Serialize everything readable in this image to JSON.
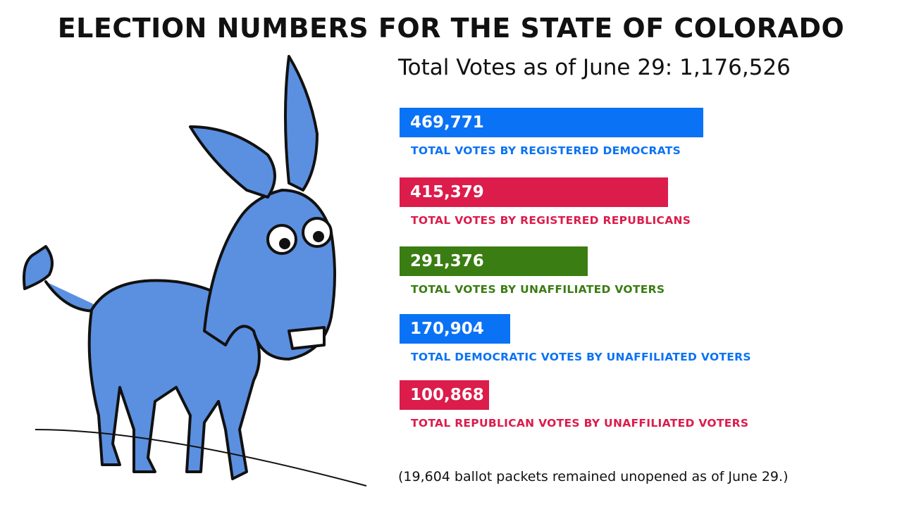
{
  "chart_data": {
    "type": "bar",
    "orientation": "horizontal",
    "title": "ELECTION NUMBERS FOR THE STATE OF COLORADO",
    "subtitle": "Total Votes as of June 29: 1,176,526",
    "categories": [
      "TOTAL VOTES BY REGISTERED DEMOCRATS",
      "TOTAL VOTES BY REGISTERED REPUBLICANS",
      "TOTAL VOTES BY UNAFFILIATED VOTERS",
      "TOTAL DEMOCRATIC VOTES BY UNAFFILIATED VOTERS",
      "TOTAL REPUBLICAN VOTES BY UNAFFILIATED VOTERS"
    ],
    "values": [
      469771,
      415379,
      291376,
      170904,
      100868
    ],
    "value_labels": [
      "469,771",
      "415,379",
      "291,376",
      "170,904",
      "100,868"
    ],
    "colors": [
      "#0a72f5",
      "#dc1c4b",
      "#3a7d12",
      "#0a72f5",
      "#dc1c4b"
    ],
    "footnote": "(19,604 ballot packets remained unopened as of June 29.)",
    "grid": false
  }
}
